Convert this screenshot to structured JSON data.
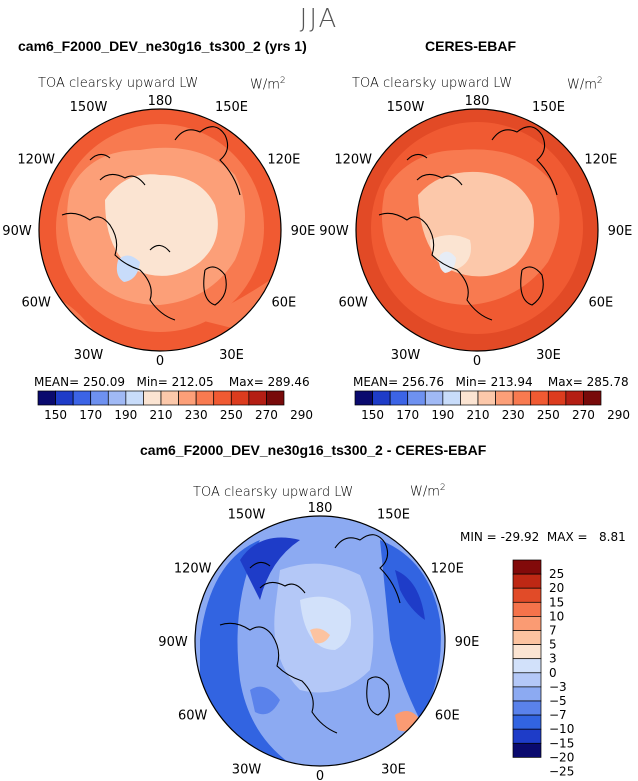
{
  "season": "JJA",
  "colors": {
    "abs_scale": [
      "#0a0a6e",
      "#1e3cc8",
      "#3c64e6",
      "#6e91f0",
      "#a0b9f5",
      "#c8dcfa",
      "#fbe4d2",
      "#fcc8aa",
      "#fc9f78",
      "#f87a50",
      "#f05a32",
      "#dc3c1e",
      "#b41e14",
      "#780a0a"
    ],
    "diff_scale": [
      "#0a0a6e",
      "#1e3cc8",
      "#3264e1",
      "#5a82eb",
      "#8caaf2",
      "#b4c8f7",
      "#d2e1fa",
      "#fbe4d2",
      "#fcc3a0",
      "#fa9b73",
      "#f5734b",
      "#e14b28",
      "#be2814",
      "#820a0a"
    ]
  },
  "panels": [
    {
      "title": "cam6_F2000_DEV_ne30g16_ts300_2 (yrs 1)",
      "variable": "TOA clearsky upward LW",
      "units_base": "W/m",
      "units_exp": "2",
      "lon_labels": [
        "180",
        "150E",
        "120E",
        "90E",
        "60E",
        "30E",
        "0",
        "30W",
        "60W",
        "90W",
        "120W",
        "150W"
      ],
      "stats": {
        "mean_label": "MEAN=",
        "mean": "250.09",
        "min_label": "Min=",
        "min": "212.05",
        "max_label": "Max=",
        "max": "289.46"
      }
    },
    {
      "title": "CERES-EBAF",
      "variable": "TOA clearsky upward LW",
      "units_base": "W/m",
      "units_exp": "2",
      "lon_labels": [
        "180",
        "150E",
        "120E",
        "90E",
        "60E",
        "30E",
        "0",
        "30W",
        "60W",
        "90W",
        "120W",
        "150W"
      ],
      "stats": {
        "mean_label": "MEAN=",
        "mean": "256.76",
        "min_label": "Min=",
        "min": "213.94",
        "max_label": "Max=",
        "max": "285.78"
      }
    },
    {
      "title": "cam6_F2000_DEV_ne30g16_ts300_2 - CERES-EBAF",
      "variable": "TOA clearsky upward LW",
      "units_base": "W/m",
      "units_exp": "2",
      "lon_labels": [
        "180",
        "150E",
        "120E",
        "90E",
        "60E",
        "30E",
        "0",
        "30W",
        "60W",
        "90W",
        "120W",
        "150W"
      ],
      "stats": {
        "min_label": "MIN =",
        "min": "-29.92",
        "max_label": "MAX =",
        "max": "8.81"
      }
    }
  ],
  "chart_data": [
    {
      "type": "heatmap",
      "projection": "north polar stereographic",
      "title": "cam6_F2000_DEV_ne30g16_ts300_2 (yrs 1)",
      "field": "TOA clearsky upward LW",
      "units": "W/m2",
      "mean": 250.09,
      "min": 212.05,
      "max": 289.46,
      "colorbar_levels": [
        150,
        160,
        170,
        180,
        190,
        200,
        210,
        220,
        230,
        240,
        250,
        260,
        270,
        280,
        290
      ],
      "colorbar_tick_labels": [
        "150",
        "170",
        "190",
        "210",
        "230",
        "250",
        "270",
        "290"
      ]
    },
    {
      "type": "heatmap",
      "projection": "north polar stereographic",
      "title": "CERES-EBAF",
      "field": "TOA clearsky upward LW",
      "units": "W/m2",
      "mean": 256.76,
      "min": 213.94,
      "max": 285.78,
      "colorbar_levels": [
        150,
        160,
        170,
        180,
        190,
        200,
        210,
        220,
        230,
        240,
        250,
        260,
        270,
        280,
        290
      ],
      "colorbar_tick_labels": [
        "150",
        "170",
        "190",
        "210",
        "230",
        "250",
        "270",
        "290"
      ]
    },
    {
      "type": "heatmap",
      "projection": "north polar stereographic",
      "title": "cam6_F2000_DEV_ne30g16_ts300_2 - CERES-EBAF",
      "field": "TOA clearsky upward LW",
      "units": "W/m2",
      "min": -29.92,
      "max": 8.81,
      "colorbar_tick_labels": [
        "25",
        "20",
        "15",
        "10",
        "7",
        "5",
        "3",
        "0",
        "−3",
        "−5",
        "−7",
        "−10",
        "−15",
        "−20",
        "−25"
      ]
    }
  ]
}
